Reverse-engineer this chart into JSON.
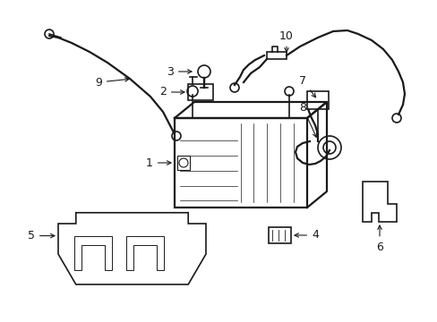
{
  "background_color": "#ffffff",
  "line_color": "#1a1a1a",
  "label_color": "#000000",
  "fig_width": 4.89,
  "fig_height": 3.6,
  "dpi": 100
}
